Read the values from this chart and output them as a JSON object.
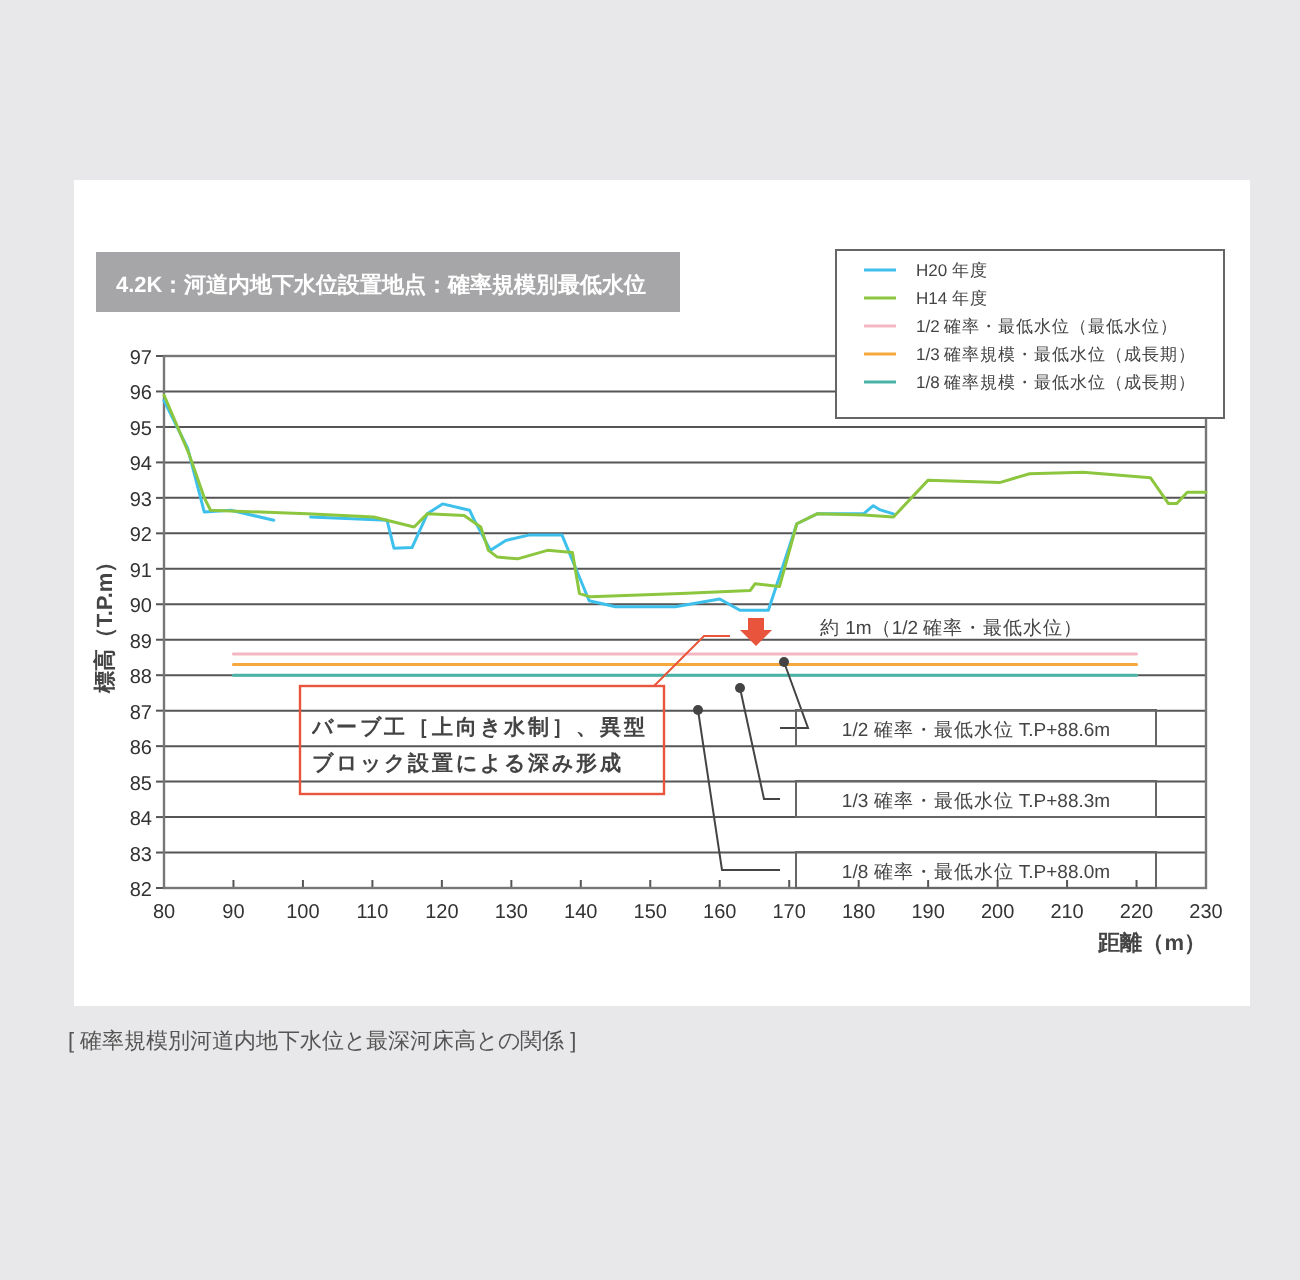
{
  "chart_data": {
    "type": "line",
    "title": "4.2K：河道内地下水位設置地点：確率規模別最低水位",
    "xlabel": "距離（m）",
    "ylabel": "標高（T.P.m）",
    "xlim": [
      80,
      230
    ],
    "xticks": [
      80,
      90,
      100,
      110,
      120,
      130,
      140,
      150,
      160,
      170,
      180,
      190,
      200,
      210,
      220,
      230
    ],
    "ylim": [
      82,
      97
    ],
    "yticks": [
      82,
      83,
      84,
      85,
      86,
      87,
      88,
      89,
      90,
      91,
      92,
      93,
      94,
      95,
      96,
      97
    ],
    "grid": "y",
    "legend": "top right",
    "line_style": "solid",
    "series": [
      {
        "name": "H20 年度",
        "color": "#3ec0ec",
        "x": [
          80,
          83.4,
          85.8,
          89.6,
          95.8,
          98,
          101.1,
          112.1,
          113.1,
          115.7,
          117.9,
          120.1,
          124,
          124.6,
          127,
          129.2,
          132.5,
          137.3,
          141.2,
          145,
          153.6,
          160,
          162.9,
          167,
          171.1,
          174,
          180.7,
          182.1,
          183.1,
          185
        ],
        "values": [
          95.74,
          94.4,
          92.6,
          92.65,
          92.37,
          null,
          92.46,
          92.37,
          91.58,
          91.6,
          92.55,
          92.83,
          92.65,
          92.4,
          91.52,
          91.8,
          91.95,
          91.95,
          90.1,
          89.93,
          89.93,
          90.15,
          89.83,
          89.83,
          92.27,
          92.55,
          92.55,
          92.78,
          92.66,
          92.55
        ]
      },
      {
        "name": "H14 年度",
        "color": "#8cc63f",
        "x": [
          80,
          83.6,
          85.8,
          86.7,
          100.6,
          110.2,
          116,
          117.9,
          123.2,
          125.6,
          126.7,
          128,
          130.9,
          135.2,
          138.8,
          139.8,
          141.4,
          154.4,
          164.4,
          165.1,
          168.6,
          171.1,
          174,
          180.7,
          185,
          190,
          200.3,
          204.6,
          212.3,
          222,
          224.6,
          225.8,
          227.3,
          230
        ],
        "values": [
          95.9,
          94.24,
          93.0,
          92.65,
          92.55,
          92.46,
          92.18,
          92.55,
          92.5,
          92.18,
          91.52,
          91.33,
          91.28,
          91.52,
          91.46,
          90.3,
          90.21,
          90.3,
          90.39,
          90.58,
          90.5,
          92.27,
          92.55,
          92.52,
          92.46,
          93.5,
          93.43,
          93.68,
          93.72,
          93.57,
          92.84,
          92.84,
          93.16,
          93.16
        ]
      },
      {
        "name": "1/2 確率・最低水位（最低水位）",
        "color": "#f4b6c2",
        "x": [
          90,
          220
        ],
        "values": [
          88.6,
          88.6
        ]
      },
      {
        "name": "1/3 確率規模・最低水位（成長期）",
        "color": "#f5a93c",
        "x": [
          90,
          220
        ],
        "values": [
          88.3,
          88.3
        ]
      },
      {
        "name": "1/8 確率規模・最低水位（成長期）",
        "color": "#4ab3a8",
        "x": [
          90,
          220
        ],
        "values": [
          88.0,
          88.0
        ]
      }
    ],
    "annotations": [
      "約 1m（1/2 確率・最低水位）",
      "バーブ工［上向き水制］、異型ブロック設置による深み形成",
      "1/2 確率・最低水位 T.P+88.6m",
      "1/3 確率・最低水位 T.P+88.3m",
      "1/8 確率・最低水位 T.P+88.0m",
      "[ 確率規模別河道内地下水位と最深河床高との関係 ]"
    ]
  }
}
